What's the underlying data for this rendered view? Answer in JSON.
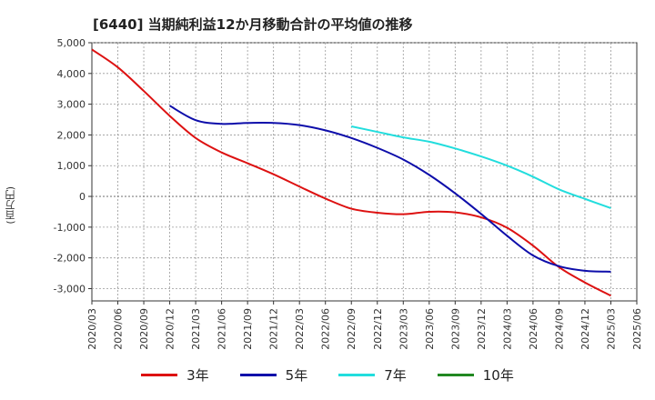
{
  "chart_data": {
    "type": "line",
    "title": "[6440]  当期純利益12か月移動合計の平均値の推移",
    "ylabel": "(百万円)",
    "xlabel": "",
    "ylim": [
      -3400,
      5000
    ],
    "yticks": [
      5000,
      4000,
      3000,
      2000,
      1000,
      0,
      -1000,
      -2000,
      -3000
    ],
    "ytick_labels": [
      "5,000",
      "4,000",
      "3,000",
      "2,000",
      "1,000",
      "0",
      "-1,000",
      "-2,000",
      "-3,000"
    ],
    "x": [
      "2020/03",
      "2020/06",
      "2020/09",
      "2020/12",
      "2021/03",
      "2021/06",
      "2021/09",
      "2021/12",
      "2022/03",
      "2022/06",
      "2022/09",
      "2022/12",
      "2023/03",
      "2023/06",
      "2023/09",
      "2023/12",
      "2024/03",
      "2024/06",
      "2024/09",
      "2024/12",
      "2025/03",
      "2025/06"
    ],
    "grid": true,
    "legend_position": "bottom",
    "series": [
      {
        "name": "3年",
        "color": "#dd1111",
        "values": [
          4780,
          4200,
          3430,
          2620,
          1900,
          1430,
          1080,
          720,
          320,
          -70,
          -400,
          -530,
          -580,
          -500,
          -520,
          -680,
          -1020,
          -1600,
          -2300,
          -2800,
          -3230,
          null
        ]
      },
      {
        "name": "5年",
        "color": "#0d0daa",
        "values": [
          null,
          null,
          null,
          2950,
          2480,
          2360,
          2390,
          2390,
          2320,
          2150,
          1900,
          1580,
          1200,
          700,
          100,
          -570,
          -1280,
          -1920,
          -2270,
          -2420,
          -2450,
          null
        ]
      },
      {
        "name": "7年",
        "color": "#22dddd",
        "values": [
          null,
          null,
          null,
          null,
          null,
          null,
          null,
          null,
          null,
          null,
          2280,
          2100,
          1920,
          1780,
          1560,
          1300,
          1000,
          640,
          230,
          -80,
          -380,
          null
        ]
      },
      {
        "name": "10年",
        "color": "#228822",
        "values": [
          null,
          null,
          null,
          null,
          null,
          null,
          null,
          null,
          null,
          null,
          null,
          null,
          null,
          null,
          null,
          null,
          null,
          null,
          null,
          null,
          null,
          null
        ]
      }
    ]
  }
}
